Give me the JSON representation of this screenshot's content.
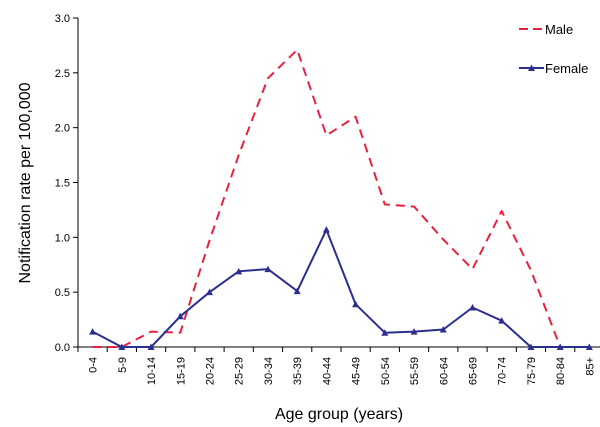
{
  "chart_data": {
    "type": "line",
    "title": "",
    "xlabel": "Age group (years)",
    "ylabel": "Notification rate per 100,000",
    "ylim": [
      0,
      3.0
    ],
    "yticks": [
      "0.0",
      "0.5",
      "1.0",
      "1.5",
      "2.0",
      "2.5",
      "3.0"
    ],
    "categories": [
      "0-4",
      "5-9",
      "10-14",
      "15-19",
      "20-24",
      "25-29",
      "30-34",
      "35-39",
      "40-44",
      "45-49",
      "50-54",
      "55-59",
      "60-64",
      "65-69",
      "70-74",
      "75-79",
      "80-84",
      "85+"
    ],
    "grid": false,
    "legend_position": "top-right",
    "series": [
      {
        "name": "Male",
        "color": "#E8213F",
        "style": "dashed",
        "marker": "none",
        "values": [
          0.0,
          0.0,
          0.14,
          0.13,
          0.97,
          1.75,
          2.45,
          2.71,
          1.93,
          2.1,
          1.3,
          1.28,
          0.98,
          0.71,
          1.24,
          0.7,
          0.0,
          0.0
        ]
      },
      {
        "name": "Female",
        "color": "#2B2F8F",
        "style": "solid",
        "marker": "triangle",
        "values": [
          0.14,
          0.0,
          0.0,
          0.28,
          0.5,
          0.69,
          0.71,
          0.51,
          1.07,
          0.39,
          0.13,
          0.14,
          0.16,
          0.36,
          0.24,
          0.0,
          0.0,
          0.0
        ]
      }
    ]
  }
}
